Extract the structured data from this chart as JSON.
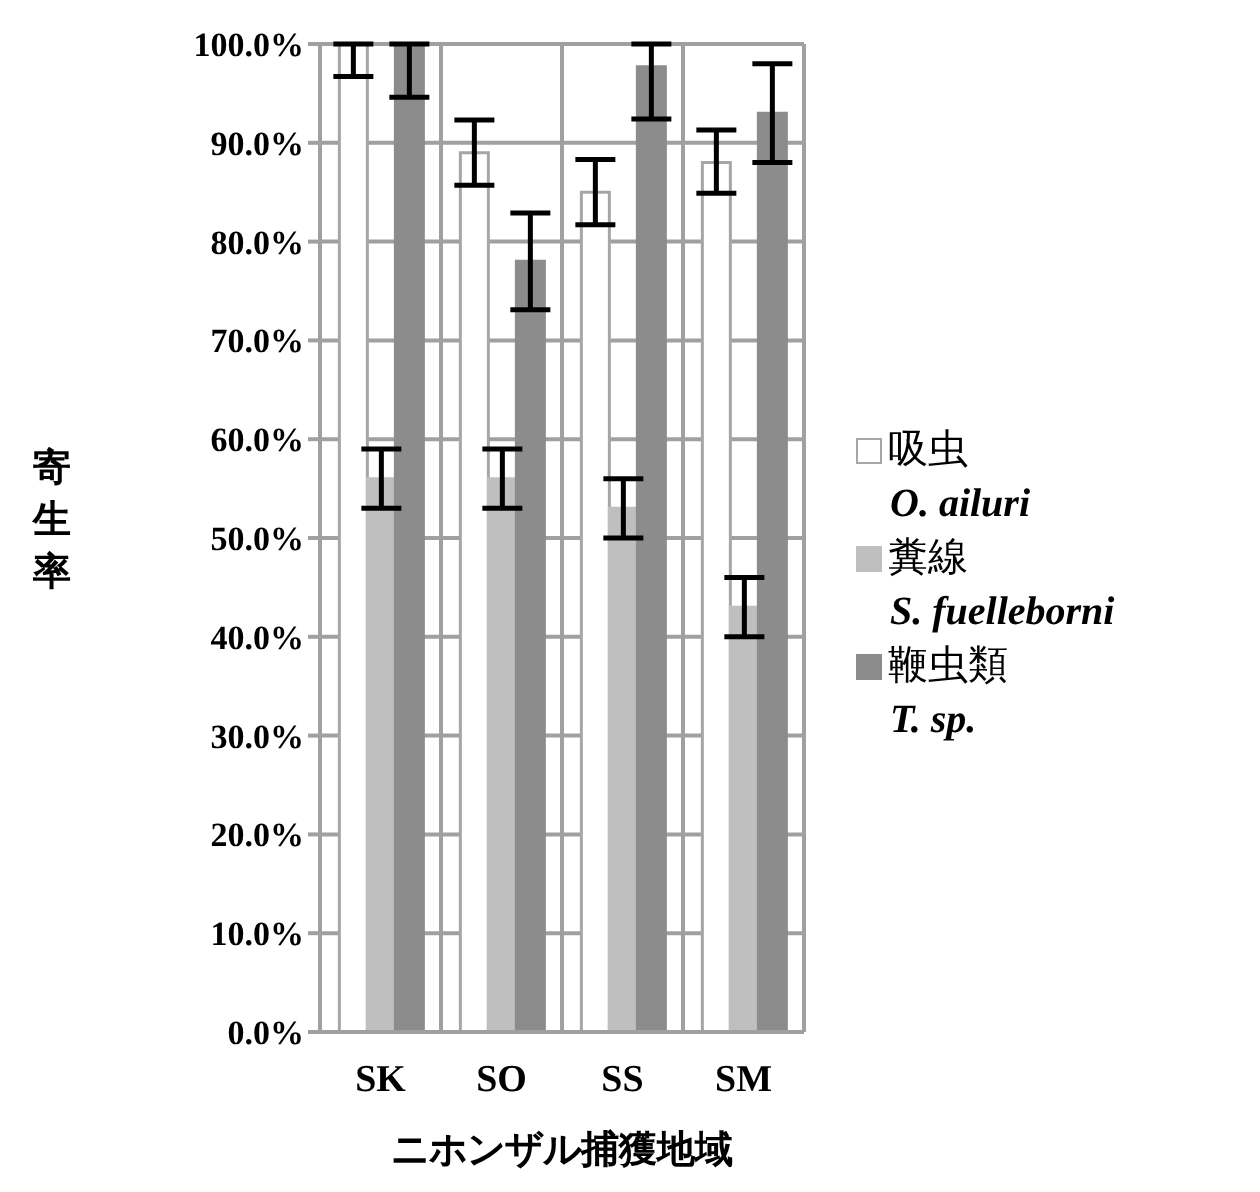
{
  "chart_data": {
    "type": "bar",
    "xlabel": "ニホンザル捕獲地域",
    "ylabel": "寄生率",
    "categories": [
      "SK",
      "SO",
      "SS",
      "SM"
    ],
    "series": [
      {
        "name": "吸虫\nO. ailuri",
        "color": "#ffffff",
        "values": [
          100,
          89,
          85,
          88
        ],
        "errors": [
          [
            96.7,
            100
          ],
          [
            85.7,
            92.3
          ],
          [
            81.7,
            88.3
          ],
          [
            84.9,
            91.3
          ]
        ]
      },
      {
        "name": "糞線\nS. fuelleborni",
        "color": "#bfbfbf",
        "values": [
          56,
          56,
          53,
          43
        ],
        "errors": [
          [
            53,
            59
          ],
          [
            53,
            59
          ],
          [
            50,
            56
          ],
          [
            40,
            46
          ]
        ]
      },
      {
        "name": "鞭虫類\nT. sp.",
        "color": "#8c8c8c",
        "values": [
          100,
          78,
          97.7,
          93
        ],
        "errors": [
          [
            94.6,
            100
          ],
          [
            73.1,
            82.9
          ],
          [
            92.4,
            100
          ],
          [
            88,
            98
          ]
        ]
      }
    ],
    "ylim": [
      0,
      100
    ],
    "yticks": [
      {
        "value": 0,
        "label": "0.0%"
      },
      {
        "value": 10,
        "label": "10.0%"
      },
      {
        "value": 20,
        "label": "20.0%"
      },
      {
        "value": 30,
        "label": "30.0%"
      },
      {
        "value": 40,
        "label": "40.0%"
      },
      {
        "value": 50,
        "label": "50.0%"
      },
      {
        "value": 60,
        "label": "60.0%"
      },
      {
        "value": 70,
        "label": "70.0%"
      },
      {
        "value": 80,
        "label": "80.0%"
      },
      {
        "value": 90,
        "label": "90.0%"
      },
      {
        "value": 100,
        "label": "100.0%"
      }
    ],
    "grid": true,
    "legend": "right"
  }
}
